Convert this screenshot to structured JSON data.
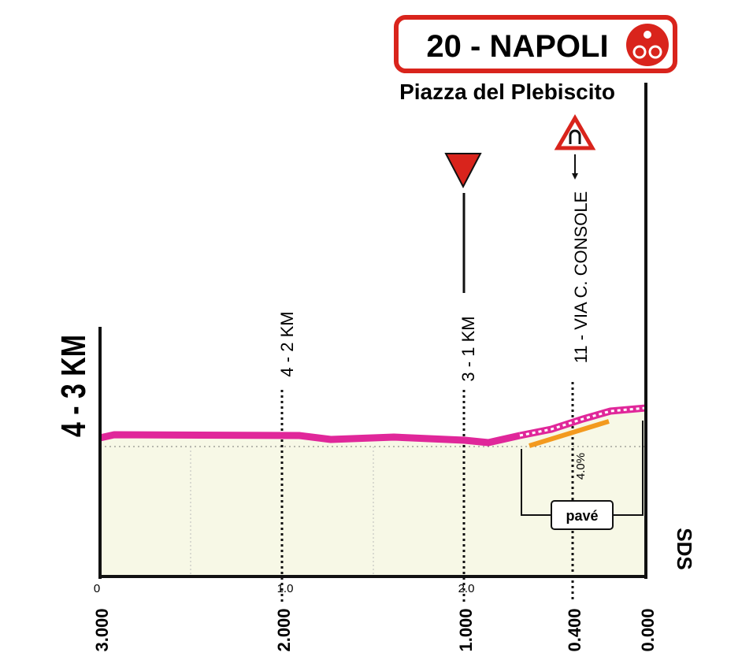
{
  "header": {
    "title": "20 - NAPOLI",
    "subtitle": "Piazza del Plebiscito"
  },
  "profile": {
    "segment": "4 - 3 KM",
    "markers": [
      "4 - 2 KM",
      "3 - 1 KM",
      "11 - VIA C. CONSOLE"
    ],
    "gradient": "4.0%",
    "surface": "pavé",
    "logo": "SDS"
  },
  "axis": {
    "top_labels": [
      "0",
      "1.0",
      "2.0"
    ],
    "bottom_labels": [
      "3.000",
      "2.000",
      "1.000",
      "0.400",
      "0.000"
    ]
  }
}
